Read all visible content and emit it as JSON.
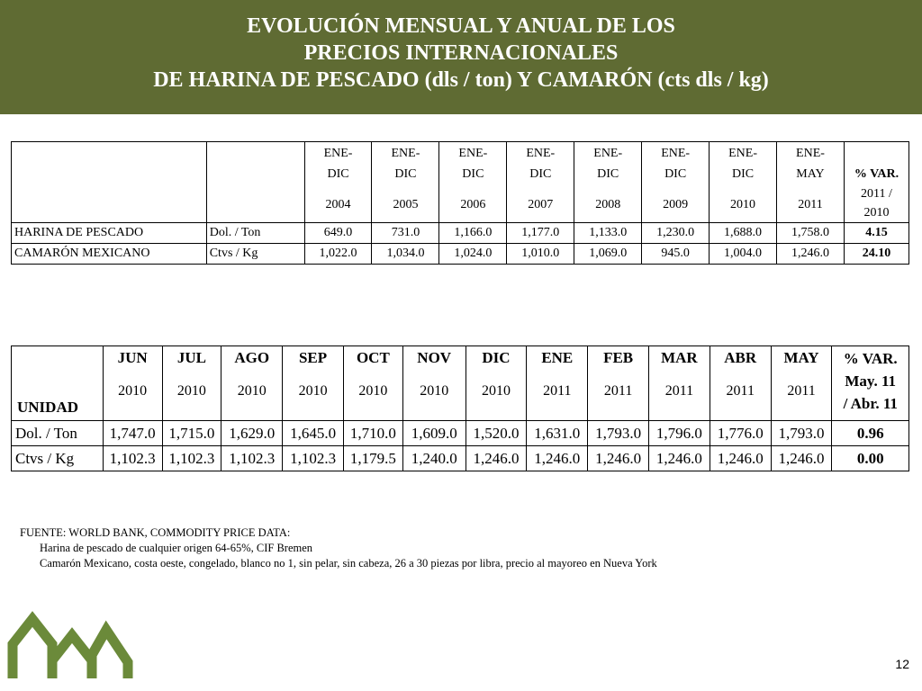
{
  "title": {
    "line1": "EVOLUCIÓN MENSUAL Y ANUAL DE LOS",
    "line2": "PRECIOS INTERNACIONALES",
    "line3": "DE HARINA DE PESCADO (dls / ton) Y CAMARÓN (cts dls / kg)"
  },
  "annual_table": {
    "columns": [
      {
        "period": "ENE-DIC",
        "p1": "ENE-",
        "p2": "DIC",
        "year": "2004"
      },
      {
        "period": "ENE-DIC",
        "p1": "ENE-",
        "p2": "DIC",
        "year": "2005"
      },
      {
        "period": "ENE-DIC",
        "p1": "ENE-",
        "p2": "DIC",
        "year": "2006"
      },
      {
        "period": "ENE-DIC",
        "p1": "ENE-",
        "p2": "DIC",
        "year": "2007"
      },
      {
        "period": "ENE-DIC",
        "p1": "ENE-",
        "p2": "DIC",
        "year": "2008"
      },
      {
        "period": "ENE-DIC",
        "p1": "ENE-",
        "p2": "DIC",
        "year": "2009"
      },
      {
        "period": "ENE-DIC",
        "p1": "ENE-",
        "p2": "DIC",
        "year": "2010"
      },
      {
        "period": "ENE-MAY",
        "p1": "ENE-",
        "p2": "MAY",
        "year": "2011"
      }
    ],
    "var_header": {
      "l1": "% VAR.",
      "l2": "2011 /",
      "l3": "2010"
    },
    "rows": [
      {
        "product": "HARINA DE PESCADO",
        "unit": "Dol. / Ton",
        "values": [
          "649.0",
          "731.0",
          "1,166.0",
          "1,177.0",
          "1,133.0",
          "1,230.0",
          "1,688.0",
          "1,758.0"
        ],
        "var": "4.15"
      },
      {
        "product": "CAMARÓN MEXICANO",
        "unit": "Ctvs / Kg",
        "values": [
          "1,022.0",
          "1,034.0",
          "1,024.0",
          "1,010.0",
          "1,069.0",
          "945.0",
          "1,004.0",
          "1,246.0"
        ],
        "var": "24.10"
      }
    ]
  },
  "monthly_table": {
    "unit_header": "UNIDAD",
    "columns": [
      {
        "month": "JUN",
        "year": "2010"
      },
      {
        "month": "JUL",
        "year": "2010"
      },
      {
        "month": "AGO",
        "year": "2010"
      },
      {
        "month": "SEP",
        "year": "2010"
      },
      {
        "month": "OCT",
        "year": "2010"
      },
      {
        "month": "NOV",
        "year": "2010"
      },
      {
        "month": "DIC",
        "year": "2010"
      },
      {
        "month": "ENE",
        "year": "2011"
      },
      {
        "month": "FEB",
        "year": "2011"
      },
      {
        "month": "MAR",
        "year": "2011"
      },
      {
        "month": "ABR",
        "year": "2011"
      },
      {
        "month": "MAY",
        "year": "2011"
      }
    ],
    "var_header": {
      "l1": "% VAR.",
      "l2": "May. 11",
      "l3": "/ Abr. 11"
    },
    "rows": [
      {
        "unit": "Dol. / Ton",
        "values": [
          "1,747.0",
          "1,715.0",
          "1,629.0",
          "1,645.0",
          "1,710.0",
          "1,609.0",
          "1,520.0",
          "1,631.0",
          "1,793.0",
          "1,796.0",
          "1,776.0",
          "1,793.0"
        ],
        "var": "0.96"
      },
      {
        "unit": "Ctvs / Kg",
        "values": [
          "1,102.3",
          "1,102.3",
          "1,102.3",
          "1,102.3",
          "1,179.5",
          "1,240.0",
          "1,246.0",
          "1,246.0",
          "1,246.0",
          "1,246.0",
          "1,246.0",
          "1,246.0"
        ],
        "var": "0.00"
      }
    ]
  },
  "source": {
    "line1": "FUENTE: WORLD BANK, COMMODITY PRICE DATA:",
    "line2": "Harina de pescado  de cualquier origen 64-65%, CIF Bremen",
    "line3": "Camarón Mexicano, costa oeste, congelado,  blanco no 1, sin pelar, sin cabeza, 26 a 30 piezas por libra, precio al mayoreo en Nueva York"
  },
  "page_number": "12",
  "colors": {
    "header_bg": "#5f6b33",
    "logo": "#6b8a3a"
  },
  "icons": {
    "logo": "mountain-logo-icon"
  }
}
